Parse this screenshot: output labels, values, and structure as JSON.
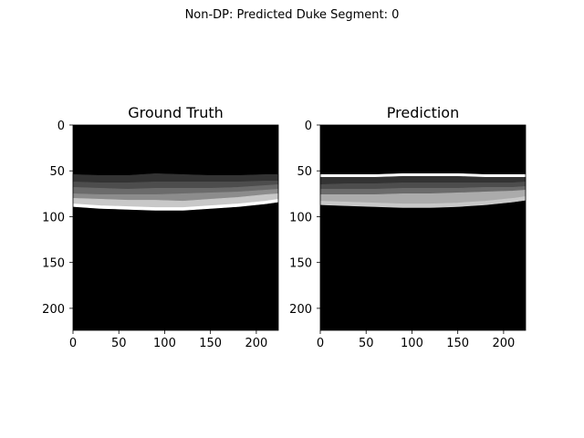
{
  "figure": {
    "suptitle": "Non-DP: Predicted Duke Segment: 0"
  },
  "colors": {
    "background": "#000000",
    "layer_dark": "#333333",
    "layer_mid_dark": "#4d4d4d",
    "layer_mid": "#6b6b6b",
    "layer_light_mid": "#8c8c8c",
    "layer_light": "#ababab",
    "layer_very_light": "#c8c8c8",
    "layer_white": "#ffffff"
  },
  "chart_data": [
    {
      "type": "heatmap",
      "title": "Ground Truth",
      "xlabel": "",
      "ylabel": "",
      "xlim": [
        0,
        224
      ],
      "ylim": [
        224,
        0
      ],
      "xticks": [
        0,
        50,
        100,
        150,
        200
      ],
      "yticks": [
        0,
        50,
        100,
        150,
        200
      ],
      "image_size": [
        224,
        224
      ],
      "layer_boundaries": {
        "x": [
          0,
          30,
          60,
          90,
          120,
          150,
          180,
          210,
          224
        ],
        "layers": [
          {
            "color": "#333333",
            "top": [
              54,
              55,
              55,
              53,
              54,
              55,
              55,
              54,
              54
            ],
            "bottom": [
              62,
              63,
              63,
              62,
              62,
              62,
              62,
              61,
              61
            ]
          },
          {
            "color": "#4d4d4d",
            "top": [
              62,
              63,
              63,
              62,
              62,
              62,
              62,
              61,
              61
            ],
            "bottom": [
              68,
              69,
              70,
              69,
              69,
              69,
              68,
              66,
              65
            ]
          },
          {
            "color": "#6b6b6b",
            "top": [
              68,
              69,
              70,
              69,
              69,
              69,
              68,
              66,
              65
            ],
            "bottom": [
              75,
              76,
              76,
              76,
              75,
              74,
              73,
              71,
              70
            ]
          },
          {
            "color": "#8c8c8c",
            "top": [
              75,
              76,
              76,
              76,
              75,
              74,
              73,
              71,
              70
            ],
            "bottom": [
              80,
              81,
              82,
              82,
              83,
              81,
              79,
              76,
              75
            ]
          },
          {
            "color": "#c8c8c8",
            "top": [
              80,
              81,
              82,
              82,
              83,
              81,
              79,
              76,
              75
            ],
            "bottom": [
              86,
              88,
              89,
              90,
              90,
              88,
              86,
              83,
              81
            ]
          },
          {
            "color": "#ffffff",
            "top": [
              86,
              88,
              89,
              90,
              90,
              88,
              86,
              83,
              81
            ],
            "bottom": [
              89,
              91,
              92,
              93,
              93,
              91,
              89,
              86,
              84
            ]
          }
        ]
      }
    },
    {
      "type": "heatmap",
      "title": "Prediction",
      "xlabel": "",
      "ylabel": "",
      "xlim": [
        0,
        224
      ],
      "ylim": [
        224,
        0
      ],
      "xticks": [
        0,
        50,
        100,
        150,
        200
      ],
      "yticks": [
        0,
        50,
        100,
        150,
        200
      ],
      "image_size": [
        224,
        224
      ],
      "layer_boundaries": {
        "x": [
          0,
          30,
          60,
          90,
          120,
          150,
          180,
          210,
          224
        ],
        "layers": [
          {
            "color": "#ffffff",
            "top": [
              54,
              54,
              54,
              53,
              53,
              53,
              54,
              54,
              54
            ],
            "bottom": [
              57,
              57,
              57,
              56,
              56,
              56,
              57,
              57,
              57
            ]
          },
          {
            "color": "#333333",
            "top": [
              57,
              57,
              57,
              56,
              56,
              56,
              57,
              57,
              57
            ],
            "bottom": [
              65,
              64,
              64,
              63,
              63,
              63,
              63,
              63,
              62
            ]
          },
          {
            "color": "#4d4d4d",
            "top": [
              65,
              64,
              64,
              63,
              63,
              63,
              63,
              63,
              62
            ],
            "bottom": [
              70,
              70,
              70,
              69,
              69,
              69,
              68,
              68,
              67
            ]
          },
          {
            "color": "#6b6b6b",
            "top": [
              70,
              70,
              70,
              69,
              69,
              69,
              68,
              68,
              67
            ],
            "bottom": [
              76,
              76,
              76,
              75,
              75,
              74,
              73,
              72,
              71
            ]
          },
          {
            "color": "#ababab",
            "top": [
              76,
              76,
              76,
              75,
              75,
              74,
              73,
              72,
              71
            ],
            "bottom": [
              83,
              84,
              85,
              86,
              86,
              85,
              83,
              80,
              78
            ]
          },
          {
            "color": "#c8c8c8",
            "top": [
              83,
              84,
              85,
              86,
              86,
              85,
              83,
              80,
              78
            ],
            "bottom": [
              87,
              88,
              89,
              90,
              90,
              89,
              87,
              84,
              82
            ]
          }
        ]
      }
    }
  ]
}
